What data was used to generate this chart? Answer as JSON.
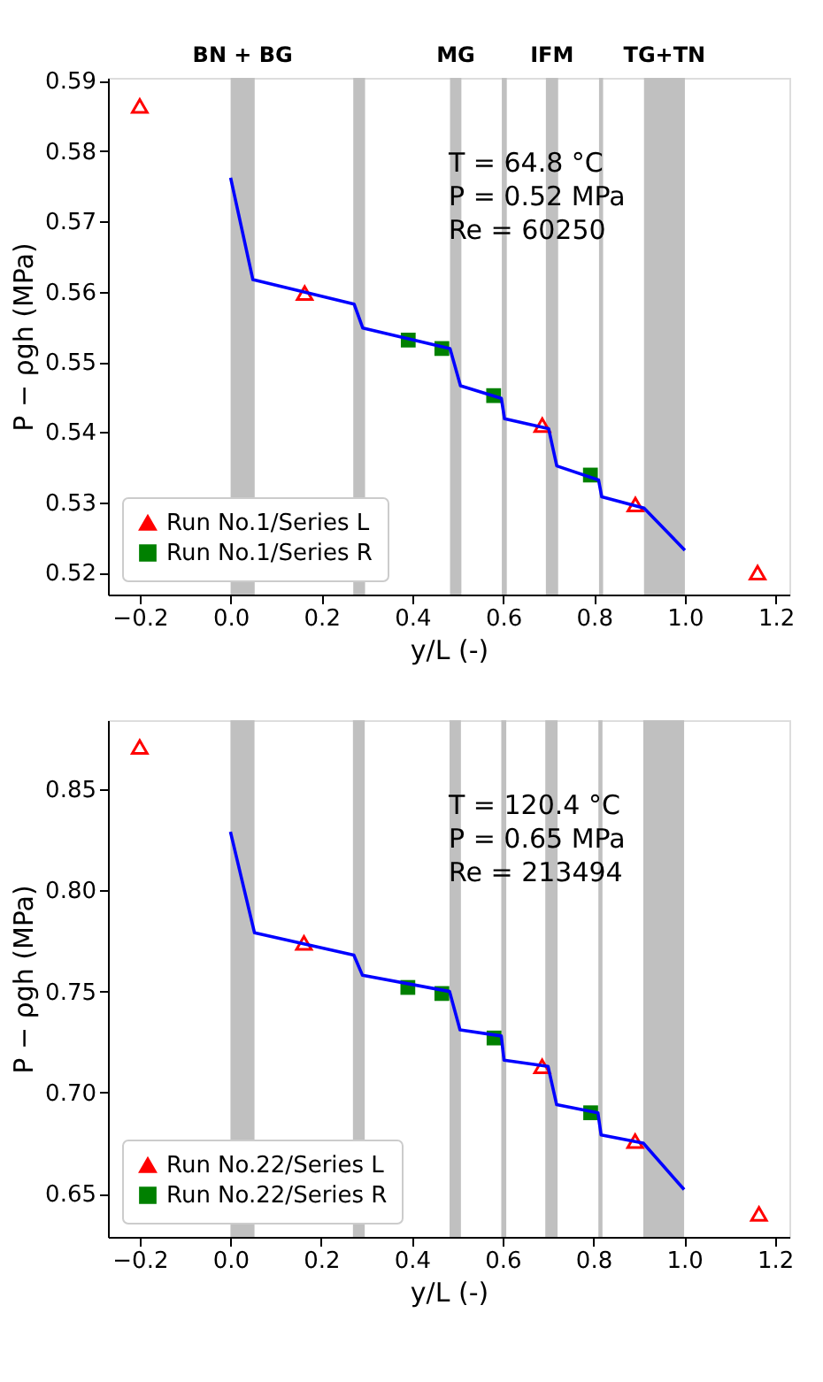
{
  "chart_data": [
    {
      "type": "line",
      "xlabel": "y/L (-)",
      "ylabel": "P − ρgh (MPa)",
      "xlim": [
        -0.27,
        1.23
      ],
      "ylim": [
        0.5169,
        0.5904
      ],
      "xticks": [
        {
          "value": -0.2,
          "label": "−0.2"
        },
        {
          "value": 0,
          "label": "0.0"
        },
        0.2,
        0.4,
        0.6,
        0.8,
        {
          "value": 1,
          "label": "1.0"
        },
        1.2
      ],
      "yticks": [
        0.52,
        0.53,
        0.54,
        0.55,
        0.56,
        0.57,
        0.58,
        0.59
      ],
      "grid": false,
      "legend": "bottom left",
      "bands": [
        {
          "axis": "x",
          "from": 0,
          "to": 0.053,
          "color": "#c0c0c0",
          "label": "BN + BG"
        },
        {
          "axis": "x",
          "from": 0.27,
          "to": 0.296,
          "color": "#c0c0c0"
        },
        {
          "axis": "x",
          "from": 0.483,
          "to": 0.508,
          "color": "#c0c0c0",
          "label": "MG"
        },
        {
          "axis": "x",
          "from": 0.597,
          "to": 0.608,
          "color": "#c0c0c0"
        },
        {
          "axis": "x",
          "from": 0.694,
          "to": 0.721,
          "color": "#c0c0c0",
          "label": "IFM"
        },
        {
          "axis": "x",
          "from": 0.811,
          "to": 0.82,
          "color": "#c0c0c0"
        },
        {
          "axis": "x",
          "from": 0.91,
          "to": 1.0,
          "color": "#c0c0c0",
          "label": "TG+TN"
        }
      ],
      "annotations": [
        "T = 64.8  °C",
        "P = 0.52 MPa",
        "Re = 60250"
      ],
      "series": [
        {
          "name": "Run No.1/Series L",
          "type": "scatter",
          "marker": "triangle",
          "color": "#ff0000",
          "x": [
            -0.2,
            0.163,
            0.686,
            0.891,
            1.16
          ],
          "values": [
            0.5864,
            0.5598,
            0.541,
            0.5297,
            0.52
          ]
        },
        {
          "name": "Run No.1/Series R",
          "type": "scatter",
          "marker": "square",
          "color": "#008000",
          "x": [
            0.391,
            0.465,
            0.579,
            0.792
          ],
          "values": [
            0.5531,
            0.5519,
            0.5452,
            0.5339
          ]
        },
        {
          "marker": "none",
          "line_style": "solid",
          "color": "#0000ff",
          "x": [
            0,
            0.049,
            0.272,
            0.291,
            0.483,
            0.506,
            0.596,
            0.603,
            0.7,
            0.718,
            0.81,
            0.817,
            0.91,
            1.0
          ],
          "values": [
            0.5762,
            0.5617,
            0.5582,
            0.5548,
            0.5519,
            0.5466,
            0.5448,
            0.5419,
            0.5405,
            0.5352,
            0.5332,
            0.5308,
            0.5292,
            0.5232
          ]
        }
      ]
    },
    {
      "type": "line",
      "xlabel": "y/L (-)",
      "ylabel": "P − ρgh (MPa)",
      "xlim": [
        -0.27,
        1.232
      ],
      "ylim": [
        0.6286,
        0.8842
      ],
      "xticks": [
        {
          "value": -0.2,
          "label": "−0.2"
        },
        {
          "value": 0,
          "label": "0.0"
        },
        0.2,
        0.4,
        0.6,
        0.8,
        {
          "value": 1,
          "label": "1.0"
        },
        1.2
      ],
      "yticks": [
        0.65,
        {
          "value": 0.7,
          "label": "0.70"
        },
        0.75,
        {
          "value": 0.8,
          "label": "0.80"
        },
        0.85
      ],
      "grid": false,
      "legend": "bottom left",
      "bands": [
        {
          "axis": "x",
          "from": 0,
          "to": 0.053,
          "color": "#c0c0c0"
        },
        {
          "axis": "x",
          "from": 0.27,
          "to": 0.296,
          "color": "#c0c0c0"
        },
        {
          "axis": "x",
          "from": 0.483,
          "to": 0.508,
          "color": "#c0c0c0"
        },
        {
          "axis": "x",
          "from": 0.597,
          "to": 0.608,
          "color": "#c0c0c0"
        },
        {
          "axis": "x",
          "from": 0.694,
          "to": 0.721,
          "color": "#c0c0c0"
        },
        {
          "axis": "x",
          "from": 0.811,
          "to": 0.82,
          "color": "#c0c0c0"
        },
        {
          "axis": "x",
          "from": 0.91,
          "to": 1.0,
          "color": "#c0c0c0"
        }
      ],
      "annotations": [
        "T = 120.4  °C",
        "P = 0.65 MPa",
        "Re = 213494"
      ],
      "series": [
        {
          "name": "Run No.22/Series L",
          "type": "scatter",
          "marker": "triangle",
          "color": "#ff0000",
          "x": [
            -0.2,
            0.162,
            0.687,
            0.892,
            1.165
          ],
          "values": [
            0.871,
            0.774,
            0.713,
            0.676,
            0.64
          ]
        },
        {
          "name": "Run No.22/Series R",
          "type": "scatter",
          "marker": "square",
          "color": "#008000",
          "x": [
            0.391,
            0.466,
            0.581,
            0.794
          ],
          "values": [
            0.752,
            0.749,
            0.727,
            0.69
          ]
        },
        {
          "marker": "none",
          "line_style": "solid",
          "color": "#0000ff",
          "x": [
            0,
            0.053,
            0.272,
            0.291,
            0.483,
            0.506,
            0.597,
            0.603,
            0.7,
            0.719,
            0.81,
            0.817,
            0.91,
            1.0
          ],
          "values": [
            0.829,
            0.779,
            0.768,
            0.758,
            0.75,
            0.731,
            0.728,
            0.716,
            0.713,
            0.694,
            0.69,
            0.679,
            0.675,
            0.652
          ]
        }
      ]
    }
  ]
}
